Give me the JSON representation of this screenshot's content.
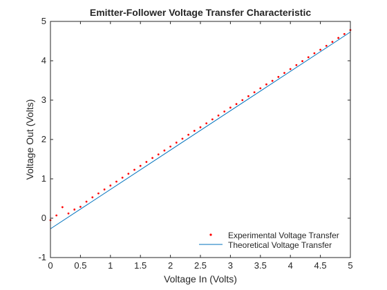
{
  "chart_data": {
    "type": "scatter",
    "title": "Emitter-Follower Voltage Transfer Characteristic",
    "xlabel": "Voltage In (Volts)",
    "ylabel": "Voltage Out (Volts)",
    "xlim": [
      0,
      5
    ],
    "ylim": [
      -1,
      5
    ],
    "xticks": [
      "0",
      "0.5",
      "1",
      "1.5",
      "2",
      "2.5",
      "3",
      "3.5",
      "4",
      "4.5",
      "5"
    ],
    "yticks": [
      "-1",
      "0",
      "1",
      "2",
      "3",
      "4",
      "5"
    ],
    "grid": false,
    "legend_position": "bottom-right",
    "series": [
      {
        "name": "Experimental Voltage Transfer",
        "kind": "markers",
        "color": "#ff0000",
        "x": [
          0,
          0.1,
          0.2,
          0.3,
          0.4,
          0.5,
          0.6,
          0.7,
          0.8,
          0.9,
          1.0,
          1.1,
          1.2,
          1.3,
          1.4,
          1.5,
          1.6,
          1.7,
          1.8,
          1.9,
          2.0,
          2.1,
          2.2,
          2.3,
          2.4,
          2.5,
          2.6,
          2.7,
          2.8,
          2.9,
          3.0,
          3.1,
          3.2,
          3.3,
          3.4,
          3.5,
          3.6,
          3.7,
          3.8,
          3.9,
          4.0,
          4.1,
          4.2,
          4.3,
          4.4,
          4.5,
          4.6,
          4.7,
          4.8,
          4.9,
          5.0
        ],
        "y": [
          -0.05,
          0.07,
          0.28,
          0.12,
          0.22,
          0.29,
          0.42,
          0.53,
          0.63,
          0.73,
          0.83,
          0.93,
          1.03,
          1.13,
          1.23,
          1.33,
          1.43,
          1.53,
          1.62,
          1.72,
          1.82,
          1.92,
          2.02,
          2.12,
          2.22,
          2.31,
          2.41,
          2.51,
          2.61,
          2.71,
          2.81,
          2.9,
          3.0,
          3.1,
          3.2,
          3.3,
          3.4,
          3.49,
          3.59,
          3.69,
          3.79,
          3.89,
          3.99,
          4.09,
          4.19,
          4.28,
          4.38,
          4.48,
          4.58,
          4.68,
          4.78
        ]
      },
      {
        "name": "Theoretical Voltage Transfer",
        "kind": "line",
        "color": "#0072bd",
        "x": [
          0,
          5
        ],
        "y": [
          -0.27,
          4.73
        ]
      }
    ]
  }
}
